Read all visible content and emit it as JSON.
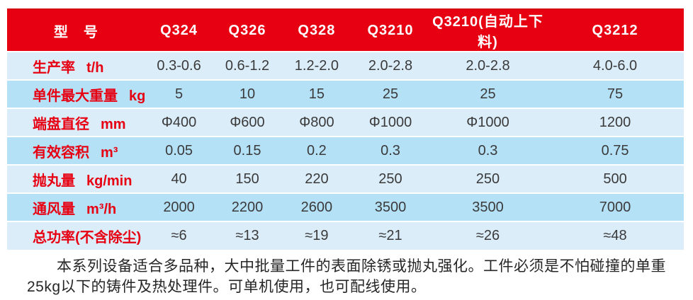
{
  "table": {
    "model_label": "型　号",
    "models": [
      "Q324",
      "Q326",
      "Q328",
      "Q3210",
      "Q3210(自动上下料)",
      "Q3212"
    ],
    "rows": [
      {
        "label": "生产率",
        "unit": "t/h",
        "values": [
          "0.3-0.6",
          "0.6-1.2",
          "1.2-2.0",
          "2.0-2.8",
          "2.0-2.8",
          "4.0-6.0"
        ]
      },
      {
        "label": "单件最大重量",
        "unit": "kg",
        "values": [
          "5",
          "10",
          "15",
          "25",
          "25",
          "75"
        ]
      },
      {
        "label": "端盘直径",
        "unit": "mm",
        "values": [
          "Φ400",
          "Φ600",
          "Φ800",
          "Φ1000",
          "Φ1000",
          "1200"
        ]
      },
      {
        "label": "有效容积",
        "unit": "m³",
        "values": [
          "0.05",
          "0.15",
          "0.2",
          "0.3",
          "0.3",
          "0.75"
        ]
      },
      {
        "label": "抛丸量",
        "unit": "kg/min",
        "values": [
          "40",
          "150",
          "220",
          "250",
          "250",
          "500"
        ]
      },
      {
        "label": "通风量",
        "unit": "m³/h",
        "values": [
          "2000",
          "2200",
          "2600",
          "3500",
          "3500",
          "7000"
        ]
      },
      {
        "label": "总功率(不含除尘)",
        "unit": "",
        "values": [
          "≈6",
          "≈13",
          "≈19",
          "≈21",
          "≈26",
          "≈48"
        ]
      }
    ]
  },
  "description": {
    "lines": [
      "本系列设备适合多品种，大中批量工件的表面除锈或抛丸强化。工件必须是不怕碰撞的单重",
      "25kg以下的铸件及热处理件。可单机使用，也可配线使用。"
    ]
  },
  "colors": {
    "header_red": "#e60012",
    "row_light_blue": "#dcedfa",
    "row_dark_blue": "#b5e1f7",
    "value_text": "#3a3a3a",
    "paragraph_text": "#262626"
  }
}
